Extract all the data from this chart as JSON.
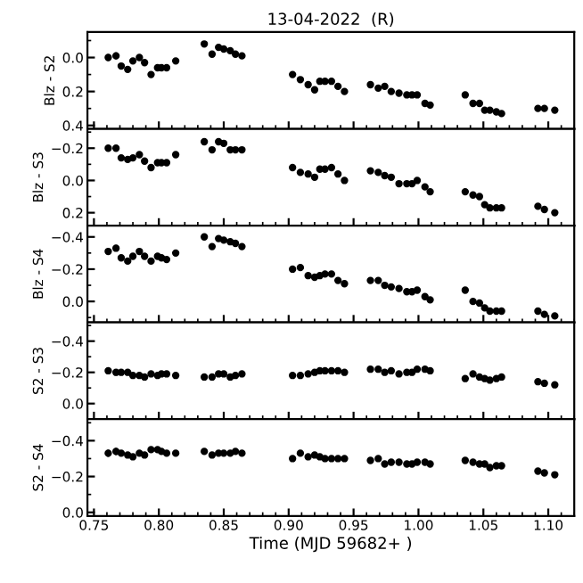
{
  "chart_data": [
    {
      "type": "scatter",
      "title": "13-04-2022  (R)",
      "ylabel": "Blz - S2",
      "marker": "circle",
      "tick_labels": "y",
      "xlim": [
        0.745,
        1.12
      ],
      "xticks": [
        0.75,
        0.8,
        0.85,
        0.9,
        0.95,
        1.0,
        1.05,
        1.1
      ],
      "ylim": [
        0.42,
        -0.15
      ],
      "yticks": [
        {
          "value": 0.0,
          "label": "0.0"
        },
        {
          "value": 0.2,
          "label": "0.2"
        },
        {
          "value": 0.4,
          "label": "0.4"
        }
      ],
      "x": [
        0.761,
        0.767,
        0.771,
        0.776,
        0.78,
        0.785,
        0.789,
        0.794,
        0.799,
        0.802,
        0.806,
        0.813,
        0.835,
        0.841,
        0.846,
        0.85,
        0.855,
        0.859,
        0.864,
        0.903,
        0.909,
        0.915,
        0.92,
        0.924,
        0.928,
        0.933,
        0.938,
        0.943,
        0.963,
        0.969,
        0.974,
        0.979,
        0.985,
        0.991,
        0.995,
        0.999,
        1.005,
        1.009,
        1.036,
        1.042,
        1.047,
        1.051,
        1.055,
        1.06,
        1.064,
        1.092,
        1.097,
        1.105
      ],
      "series": [
        {
          "color": "#000000",
          "values": [
            0.0,
            -0.01,
            0.05,
            0.07,
            0.02,
            0.0,
            0.03,
            0.1,
            0.06,
            0.06,
            0.06,
            0.02,
            -0.08,
            -0.02,
            -0.06,
            -0.05,
            -0.04,
            -0.02,
            -0.01,
            0.1,
            0.13,
            0.16,
            0.19,
            0.14,
            0.14,
            0.14,
            0.17,
            0.2,
            0.16,
            0.18,
            0.17,
            0.2,
            0.21,
            0.22,
            0.22,
            0.22,
            0.27,
            0.28,
            0.22,
            0.27,
            0.27,
            0.31,
            0.31,
            0.32,
            0.33,
            0.3,
            0.3,
            0.31
          ],
          "errors": [
            0.02,
            0.02,
            0.015,
            0.015,
            0.015,
            0.015,
            0.015,
            0.015,
            0.015,
            0.015,
            0.015,
            0.015,
            0.01,
            0.01,
            0.01,
            0.01,
            0.01,
            0.01,
            0.01,
            0.01,
            0.01,
            0.01,
            0.01,
            0.01,
            0.01,
            0.01,
            0.01,
            0.01,
            0.01,
            0.01,
            0.01,
            0.01,
            0.01,
            0.01,
            0.01,
            0.01,
            0.01,
            0.01,
            0.01,
            0.01,
            0.01,
            0.01,
            0.01,
            0.01,
            0.01,
            0.015,
            0.015,
            0.015
          ]
        }
      ]
    },
    {
      "type": "scatter",
      "ylabel": "Blz - S3",
      "marker": "circle",
      "tick_labels": "y",
      "xlim": [
        0.745,
        1.12
      ],
      "xticks": [
        0.75,
        0.8,
        0.85,
        0.9,
        0.95,
        1.0,
        1.05,
        1.1
      ],
      "ylim": [
        0.28,
        -0.32
      ],
      "yticks": [
        {
          "value": -0.2,
          "label": "−0.2"
        },
        {
          "value": 0.0,
          "label": "0.0"
        },
        {
          "value": 0.2,
          "label": "0.2"
        }
      ],
      "x": [
        0.761,
        0.767,
        0.771,
        0.776,
        0.78,
        0.785,
        0.789,
        0.794,
        0.799,
        0.802,
        0.806,
        0.813,
        0.835,
        0.841,
        0.846,
        0.85,
        0.855,
        0.859,
        0.864,
        0.903,
        0.909,
        0.915,
        0.92,
        0.924,
        0.928,
        0.933,
        0.938,
        0.943,
        0.963,
        0.969,
        0.974,
        0.979,
        0.985,
        0.991,
        0.995,
        0.999,
        1.005,
        1.009,
        1.036,
        1.042,
        1.047,
        1.051,
        1.055,
        1.06,
        1.064,
        1.092,
        1.097,
        1.105
      ],
      "series": [
        {
          "color": "#000000",
          "values": [
            -0.2,
            -0.2,
            -0.14,
            -0.13,
            -0.14,
            -0.16,
            -0.12,
            -0.08,
            -0.11,
            -0.11,
            -0.11,
            -0.16,
            -0.24,
            -0.19,
            -0.24,
            -0.23,
            -0.19,
            -0.19,
            -0.19,
            -0.08,
            -0.05,
            -0.04,
            -0.02,
            -0.07,
            -0.07,
            -0.08,
            -0.04,
            0.0,
            -0.06,
            -0.05,
            -0.03,
            -0.02,
            0.02,
            0.02,
            0.02,
            0.0,
            0.04,
            0.07,
            0.07,
            0.09,
            0.1,
            0.15,
            0.17,
            0.17,
            0.17,
            0.16,
            0.18,
            0.2
          ],
          "errors": [
            0.02,
            0.02,
            0.015,
            0.015,
            0.015,
            0.015,
            0.015,
            0.015,
            0.015,
            0.015,
            0.015,
            0.015,
            0.01,
            0.01,
            0.01,
            0.01,
            0.01,
            0.01,
            0.01,
            0.01,
            0.01,
            0.01,
            0.01,
            0.01,
            0.01,
            0.01,
            0.01,
            0.01,
            0.01,
            0.01,
            0.01,
            0.01,
            0.01,
            0.01,
            0.01,
            0.01,
            0.01,
            0.01,
            0.01,
            0.01,
            0.01,
            0.01,
            0.01,
            0.01,
            0.01,
            0.015,
            0.015,
            0.015
          ]
        }
      ]
    },
    {
      "type": "scatter",
      "ylabel": "Blz - S4",
      "marker": "circle",
      "tick_labels": "y",
      "xlim": [
        0.745,
        1.12
      ],
      "xticks": [
        0.75,
        0.8,
        0.85,
        0.9,
        0.95,
        1.0,
        1.05,
        1.1
      ],
      "ylim": [
        0.13,
        -0.47
      ],
      "yticks": [
        {
          "value": -0.4,
          "label": "−0.4"
        },
        {
          "value": -0.2,
          "label": "−0.2"
        },
        {
          "value": 0.0,
          "label": "0.0"
        }
      ],
      "x": [
        0.761,
        0.767,
        0.771,
        0.776,
        0.78,
        0.785,
        0.789,
        0.794,
        0.799,
        0.802,
        0.806,
        0.813,
        0.835,
        0.841,
        0.846,
        0.85,
        0.855,
        0.859,
        0.864,
        0.903,
        0.909,
        0.915,
        0.92,
        0.924,
        0.928,
        0.933,
        0.938,
        0.943,
        0.963,
        0.969,
        0.974,
        0.979,
        0.985,
        0.991,
        0.995,
        0.999,
        1.005,
        1.009,
        1.036,
        1.042,
        1.047,
        1.051,
        1.055,
        1.06,
        1.064,
        1.092,
        1.097,
        1.105
      ],
      "series": [
        {
          "color": "#000000",
          "values": [
            -0.31,
            -0.33,
            -0.27,
            -0.25,
            -0.28,
            -0.31,
            -0.28,
            -0.25,
            -0.28,
            -0.27,
            -0.26,
            -0.3,
            -0.4,
            -0.34,
            -0.39,
            -0.38,
            -0.37,
            -0.36,
            -0.34,
            -0.2,
            -0.21,
            -0.16,
            -0.15,
            -0.16,
            -0.17,
            -0.17,
            -0.13,
            -0.11,
            -0.13,
            -0.13,
            -0.1,
            -0.09,
            -0.08,
            -0.06,
            -0.06,
            -0.07,
            -0.03,
            -0.01,
            -0.07,
            0.0,
            0.01,
            0.04,
            0.06,
            0.06,
            0.06,
            0.06,
            0.08,
            0.09
          ],
          "errors": [
            0.02,
            0.02,
            0.015,
            0.015,
            0.015,
            0.015,
            0.015,
            0.015,
            0.015,
            0.015,
            0.015,
            0.015,
            0.01,
            0.01,
            0.01,
            0.01,
            0.01,
            0.01,
            0.01,
            0.01,
            0.01,
            0.01,
            0.01,
            0.01,
            0.01,
            0.01,
            0.01,
            0.01,
            0.01,
            0.01,
            0.01,
            0.01,
            0.01,
            0.01,
            0.01,
            0.01,
            0.01,
            0.01,
            0.01,
            0.01,
            0.01,
            0.01,
            0.01,
            0.01,
            0.01,
            0.015,
            0.015,
            0.015
          ]
        }
      ]
    },
    {
      "type": "scatter",
      "ylabel": "S2 - S3",
      "marker": "circle",
      "tick_labels": "y",
      "xlim": [
        0.745,
        1.12
      ],
      "xticks": [
        0.75,
        0.8,
        0.85,
        0.9,
        0.95,
        1.0,
        1.05,
        1.1
      ],
      "ylim": [
        0.1,
        -0.52
      ],
      "yticks": [
        {
          "value": -0.4,
          "label": "−0.4"
        },
        {
          "value": -0.2,
          "label": "−0.2"
        },
        {
          "value": 0.0,
          "label": "0.0"
        }
      ],
      "x": [
        0.761,
        0.767,
        0.771,
        0.776,
        0.78,
        0.785,
        0.789,
        0.794,
        0.799,
        0.802,
        0.806,
        0.813,
        0.835,
        0.841,
        0.846,
        0.85,
        0.855,
        0.859,
        0.864,
        0.903,
        0.909,
        0.915,
        0.92,
        0.924,
        0.928,
        0.933,
        0.938,
        0.943,
        0.963,
        0.969,
        0.974,
        0.979,
        0.985,
        0.991,
        0.995,
        0.999,
        1.005,
        1.009,
        1.036,
        1.042,
        1.047,
        1.051,
        1.055,
        1.06,
        1.064,
        1.092,
        1.097,
        1.105
      ],
      "series": [
        {
          "color": "#000000",
          "values": [
            -0.21,
            -0.2,
            -0.2,
            -0.2,
            -0.18,
            -0.18,
            -0.17,
            -0.19,
            -0.18,
            -0.19,
            -0.19,
            -0.18,
            -0.17,
            -0.17,
            -0.19,
            -0.19,
            -0.17,
            -0.18,
            -0.19,
            -0.18,
            -0.18,
            -0.19,
            -0.2,
            -0.21,
            -0.21,
            -0.21,
            -0.21,
            -0.2,
            -0.22,
            -0.22,
            -0.2,
            -0.21,
            -0.19,
            -0.2,
            -0.2,
            -0.22,
            -0.22,
            -0.21,
            -0.16,
            -0.19,
            -0.17,
            -0.16,
            -0.15,
            -0.16,
            -0.17,
            -0.14,
            -0.13,
            -0.12
          ],
          "errors": [
            0.02,
            0.02,
            0.015,
            0.015,
            0.015,
            0.015,
            0.015,
            0.015,
            0.015,
            0.015,
            0.015,
            0.015,
            0.01,
            0.01,
            0.01,
            0.01,
            0.01,
            0.01,
            0.01,
            0.01,
            0.01,
            0.01,
            0.01,
            0.01,
            0.01,
            0.01,
            0.01,
            0.01,
            0.01,
            0.01,
            0.01,
            0.01,
            0.01,
            0.01,
            0.01,
            0.01,
            0.01,
            0.01,
            0.01,
            0.01,
            0.01,
            0.01,
            0.01,
            0.01,
            0.01,
            0.015,
            0.015,
            0.015
          ]
        }
      ]
    },
    {
      "type": "scatter",
      "ylabel": "S2 - S4",
      "xlabel": "Time (MJD 59682+ )",
      "marker": "circle",
      "xlim": [
        0.745,
        1.12
      ],
      "xticks": [
        {
          "value": 0.75,
          "label": "0.75"
        },
        {
          "value": 0.8,
          "label": "0.80"
        },
        {
          "value": 0.85,
          "label": "0.85"
        },
        {
          "value": 0.9,
          "label": "0.90"
        },
        {
          "value": 0.95,
          "label": "0.95"
        },
        {
          "value": 1.0,
          "label": "1.00"
        },
        {
          "value": 1.05,
          "label": "1.05"
        },
        {
          "value": 1.1,
          "label": "1.10"
        }
      ],
      "ylim": [
        0.02,
        -0.52
      ],
      "yticks": [
        {
          "value": -0.4,
          "label": "−0.4"
        },
        {
          "value": -0.2,
          "label": "−0.2"
        },
        {
          "value": 0.0,
          "label": "0.0"
        }
      ],
      "x": [
        0.761,
        0.767,
        0.771,
        0.776,
        0.78,
        0.785,
        0.789,
        0.794,
        0.799,
        0.802,
        0.806,
        0.813,
        0.835,
        0.841,
        0.846,
        0.85,
        0.855,
        0.859,
        0.864,
        0.903,
        0.909,
        0.915,
        0.92,
        0.924,
        0.928,
        0.933,
        0.938,
        0.943,
        0.963,
        0.969,
        0.974,
        0.979,
        0.985,
        0.991,
        0.995,
        0.999,
        1.005,
        1.009,
        1.036,
        1.042,
        1.047,
        1.051,
        1.055,
        1.06,
        1.064,
        1.092,
        1.097,
        1.105
      ],
      "series": [
        {
          "color": "#000000",
          "values": [
            -0.33,
            -0.34,
            -0.33,
            -0.32,
            -0.31,
            -0.33,
            -0.32,
            -0.35,
            -0.35,
            -0.34,
            -0.33,
            -0.33,
            -0.34,
            -0.32,
            -0.33,
            -0.33,
            -0.33,
            -0.34,
            -0.33,
            -0.3,
            -0.33,
            -0.31,
            -0.32,
            -0.31,
            -0.3,
            -0.3,
            -0.3,
            -0.3,
            -0.29,
            -0.3,
            -0.27,
            -0.28,
            -0.28,
            -0.27,
            -0.27,
            -0.28,
            -0.28,
            -0.27,
            -0.29,
            -0.28,
            -0.27,
            -0.27,
            -0.25,
            -0.26,
            -0.26,
            -0.23,
            -0.22,
            -0.21
          ],
          "errors": [
            0.02,
            0.02,
            0.015,
            0.015,
            0.015,
            0.015,
            0.015,
            0.015,
            0.015,
            0.015,
            0.015,
            0.015,
            0.01,
            0.01,
            0.01,
            0.01,
            0.01,
            0.01,
            0.01,
            0.01,
            0.01,
            0.01,
            0.01,
            0.01,
            0.01,
            0.01,
            0.01,
            0.01,
            0.01,
            0.01,
            0.01,
            0.01,
            0.01,
            0.01,
            0.01,
            0.01,
            0.01,
            0.01,
            0.01,
            0.01,
            0.01,
            0.01,
            0.01,
            0.01,
            0.01,
            0.015,
            0.015,
            0.015
          ]
        }
      ]
    }
  ]
}
